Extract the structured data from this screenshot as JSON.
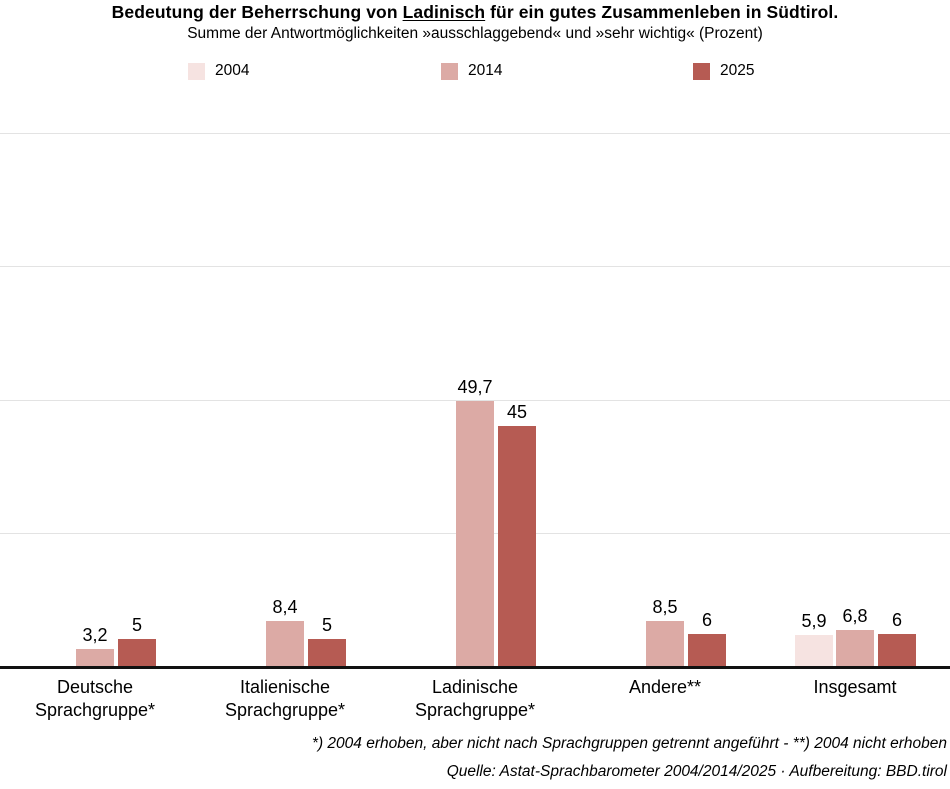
{
  "header": {
    "title_prefix": "Bedeutung der Beherrschung von ",
    "title_underlined": "Ladinisch",
    "title_suffix": " für ein gutes Zusammenleben in Südtirol.",
    "subtitle": "Summe der Antwortmöglichkeiten »ausschlaggebend« und »sehr wichtig« (Prozent)"
  },
  "footer": {
    "footnote": "*) 2004 erhoben, aber nicht nach Sprachgruppen getrennt angeführt - **) 2004 nicht erhoben",
    "source": "Quelle: Astat-Sprachbarometer 2004/2014/2025 · Aufbereitung: BBD.tirol"
  },
  "colors": {
    "series_2004": "#f6e3e1",
    "series_2014": "#dcaaa5",
    "series_2025": "#b65b53",
    "gridline": "#e3e3e3",
    "baseline": "#111111"
  },
  "chart_data": {
    "type": "bar",
    "title": "Bedeutung der Beherrschung von Ladinisch für ein gutes Zusammenleben in Südtirol.",
    "subtitle": "Summe der Antwortmöglichkeiten »ausschlaggebend« und »sehr wichtig« (Prozent)",
    "unit": "Prozent",
    "categories": [
      [
        "Deutsche",
        "Sprachgruppe*"
      ],
      [
        "Italienische",
        "Sprachgruppe*"
      ],
      [
        "Ladinische",
        "Sprachgruppe*"
      ],
      [
        "Andere**"
      ],
      [
        "Insgesamt"
      ]
    ],
    "series": [
      {
        "name": "2004",
        "color": "#f6e3e1",
        "values": [
          null,
          null,
          null,
          null,
          5.9
        ]
      },
      {
        "name": "2014",
        "color": "#dcaaa5",
        "values": [
          3.2,
          8.4,
          49.7,
          8.5,
          6.8
        ]
      },
      {
        "name": "2025",
        "color": "#b65b53",
        "values": [
          5,
          5,
          45,
          6,
          6
        ]
      }
    ],
    "ylim": [
      0,
      100
    ],
    "grid_step": 25,
    "grid": true,
    "legend_position": "top",
    "value_labels": true,
    "decimal_separator": ","
  }
}
